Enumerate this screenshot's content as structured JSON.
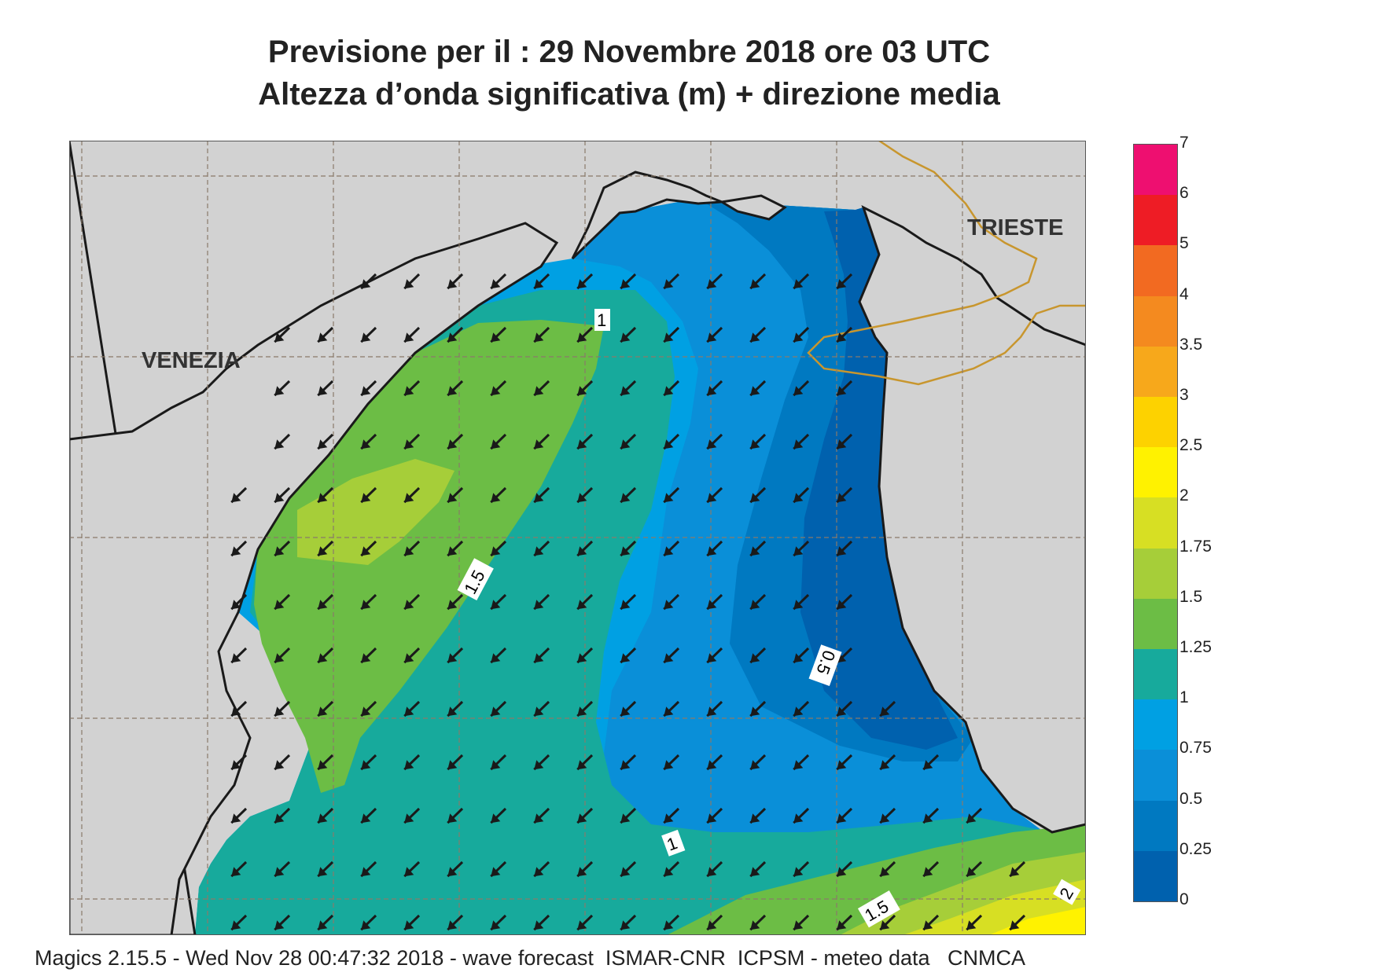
{
  "header": {
    "title_line1": "Previsione per il  :  29 Novembre  2018   ore 03 UTC",
    "title_line2": "Altezza d’onda significativa (m) + direzione media"
  },
  "map": {
    "cities": [
      {
        "name": "VENEZIA"
      },
      {
        "name": "TRIESTE"
      }
    ],
    "contour_labels": [
      "1",
      "1.5",
      "0.5",
      "1",
      "1.5",
      "2"
    ],
    "colors": {
      "land": "#d2d2d2",
      "coastline": "#1a1a1a",
      "border": "#c8962e",
      "graticule": "#8a7a6a",
      "arrow": "#1a1a1a"
    },
    "mean_direction": "south-west"
  },
  "legend": {
    "unit": "m",
    "levels": [
      {
        "label": "7",
        "color": "#ee0f70"
      },
      {
        "label": "6",
        "color": "#ee1c25"
      },
      {
        "label": "5",
        "color": "#f26a21"
      },
      {
        "label": "4",
        "color": "#f48a1f"
      },
      {
        "label": "3.5",
        "color": "#f7a81b"
      },
      {
        "label": "3",
        "color": "#fdd200"
      },
      {
        "label": "2.5",
        "color": "#fff200"
      },
      {
        "label": "2",
        "color": "#d7df23"
      },
      {
        "label": "1.75",
        "color": "#a6ce39"
      },
      {
        "label": "1.5",
        "color": "#6cbd45"
      },
      {
        "label": "1.25",
        "color": "#17aa9c"
      },
      {
        "label": "1",
        "color": "#00a0e3"
      },
      {
        "label": "0.75",
        "color": "#0a8fd8"
      },
      {
        "label": "0.5",
        "color": "#0079c1"
      },
      {
        "label": "0.25",
        "color": "#0061ae"
      },
      {
        "label": "0",
        "color": ""
      }
    ]
  },
  "footer": {
    "text": "Magics 2.15.5 - Wed Nov 28 00:47:32 2018 - wave forecast  ISMAR-CNR  ICPSM - meteo data   CNMCA"
  }
}
